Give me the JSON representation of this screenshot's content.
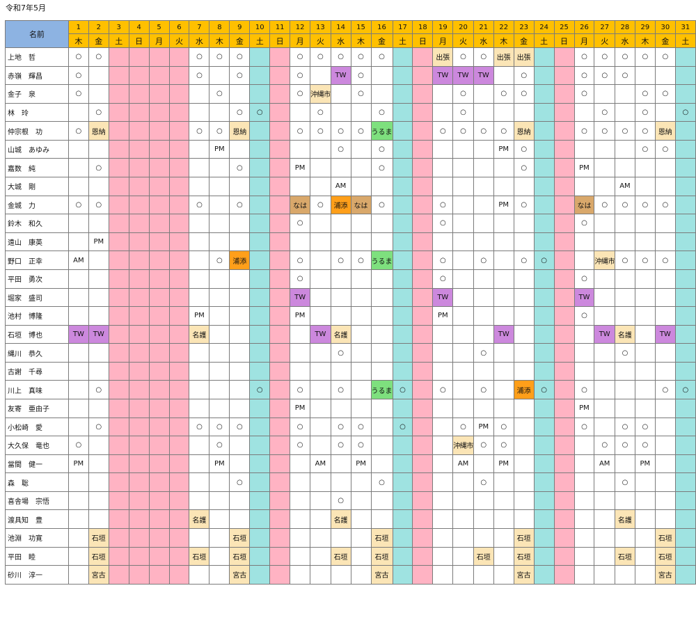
{
  "sheet": {
    "title": "令和7年5月",
    "name_header": "名前"
  },
  "days": [
    {
      "d": "1",
      "w": "木"
    },
    {
      "d": "2",
      "w": "金"
    },
    {
      "d": "3",
      "w": "土"
    },
    {
      "d": "4",
      "w": "日"
    },
    {
      "d": "5",
      "w": "月"
    },
    {
      "d": "6",
      "w": "火"
    },
    {
      "d": "7",
      "w": "水"
    },
    {
      "d": "8",
      "w": "木"
    },
    {
      "d": "9",
      "w": "金"
    },
    {
      "d": "10",
      "w": "土"
    },
    {
      "d": "11",
      "w": "日"
    },
    {
      "d": "12",
      "w": "月"
    },
    {
      "d": "13",
      "w": "火"
    },
    {
      "d": "14",
      "w": "水"
    },
    {
      "d": "15",
      "w": "木"
    },
    {
      "d": "16",
      "w": "金"
    },
    {
      "d": "17",
      "w": "土"
    },
    {
      "d": "18",
      "w": "日"
    },
    {
      "d": "19",
      "w": "月"
    },
    {
      "d": "20",
      "w": "火"
    },
    {
      "d": "21",
      "w": "水"
    },
    {
      "d": "22",
      "w": "木"
    },
    {
      "d": "23",
      "w": "金"
    },
    {
      "d": "24",
      "w": "土"
    },
    {
      "d": "25",
      "w": "日"
    },
    {
      "d": "26",
      "w": "月"
    },
    {
      "d": "27",
      "w": "火"
    },
    {
      "d": "28",
      "w": "水"
    },
    {
      "d": "29",
      "w": "木"
    },
    {
      "d": "30",
      "w": "金"
    },
    {
      "d": "31",
      "w": "土"
    }
  ],
  "day_kinds": [
    "",
    "",
    "hol",
    "hol",
    "hol",
    "hol",
    "",
    "",
    "",
    "sat",
    "hol",
    "",
    "",
    "",
    "",
    "",
    "sat",
    "hol",
    "",
    "",
    "",
    "",
    "",
    "sat",
    "hol",
    "",
    "",
    "",
    "",
    "",
    "sat"
  ],
  "colors": {
    "header_blue": "#8db3e2",
    "header_orange": "#ffc000",
    "saturday": "#9fe3e1",
    "sunday_holiday": "#ffb3c3",
    "tw": "#cc88dd",
    "urasoe": "#ff9f1a",
    "naha": "#d9a86b",
    "uruma": "#7ee07e",
    "beige": "#fbe5b6"
  },
  "staff": [
    {
      "name": "上地　哲",
      "marks": [
        "○",
        "○",
        "",
        "",
        "",
        "",
        "○",
        "○",
        "○",
        "",
        "",
        "○",
        "○",
        "○",
        "○",
        "○",
        "",
        "",
        "出張",
        "○",
        "○",
        "出張",
        "出張",
        "",
        "",
        "○",
        "○",
        "○",
        "○",
        "○",
        ""
      ]
    },
    {
      "name": "赤嶺　輝昌",
      "marks": [
        "○",
        "",
        "",
        "",
        "",
        "",
        "○",
        "",
        "○",
        "",
        "",
        "○",
        "",
        "TW",
        "○",
        "",
        "",
        "",
        "TW",
        "TW",
        "TW",
        "",
        "○",
        "",
        "",
        "○",
        "○",
        "○",
        "",
        "",
        ""
      ]
    },
    {
      "name": "金子　泉",
      "marks": [
        "○",
        "",
        "",
        "",
        "",
        "",
        "",
        "○",
        "",
        "",
        "",
        "○",
        "沖縄市",
        "",
        "○",
        "",
        "",
        "",
        "",
        "○",
        "",
        "○",
        "○",
        "",
        "",
        "○",
        "",
        "",
        "○",
        "○",
        ""
      ]
    },
    {
      "name": "林　玲",
      "marks": [
        "",
        "○",
        "",
        "",
        "",
        "",
        "",
        "",
        "○",
        "○",
        "",
        "",
        "○",
        "",
        "",
        "○",
        "",
        "",
        "",
        "○",
        "",
        "",
        "",
        "",
        "",
        "",
        "○",
        "",
        "○",
        "",
        "○"
      ]
    },
    {
      "name": "仲宗根　功",
      "marks": [
        "○",
        "恩納",
        "",
        "",
        "",
        "",
        "○",
        "○",
        "恩納",
        "",
        "",
        "○",
        "○",
        "○",
        "○",
        "うるま",
        "",
        "",
        "○",
        "○",
        "○",
        "○",
        "恩納",
        "",
        "",
        "○",
        "○",
        "○",
        "○",
        "恩納",
        ""
      ]
    },
    {
      "name": "山城　あゆみ",
      "marks": [
        "",
        "",
        "",
        "",
        "",
        "",
        "",
        "PM",
        "",
        "",
        "",
        "",
        "",
        "○",
        "",
        "○",
        "",
        "",
        "",
        "",
        "",
        "PM",
        "○",
        "",
        "",
        "",
        "",
        "",
        "○",
        "○",
        ""
      ]
    },
    {
      "name": "嘉数　純",
      "marks": [
        "",
        "○",
        "",
        "",
        "",
        "",
        "",
        "",
        "○",
        "",
        "",
        "PM",
        "",
        "",
        "",
        "○",
        "",
        "",
        "",
        "",
        "",
        "",
        "○",
        "",
        "",
        "PM",
        "",
        "",
        "",
        "",
        ""
      ]
    },
    {
      "name": "大城　剛",
      "marks": [
        "",
        "",
        "",
        "",
        "",
        "",
        "",
        "",
        "",
        "",
        "",
        "",
        "",
        "AM",
        "",
        "",
        "",
        "",
        "",
        "",
        "",
        "",
        "",
        "",
        "",
        "",
        "",
        "AM",
        "",
        "",
        ""
      ]
    },
    {
      "name": "金城　力",
      "marks": [
        "○",
        "○",
        "",
        "",
        "",
        "",
        "○",
        "",
        "○",
        "",
        "",
        "なは",
        "○",
        "浦添",
        "なは",
        "○",
        "",
        "",
        "○",
        "",
        "",
        "PM",
        "○",
        "",
        "",
        "なは",
        "○",
        "○",
        "○",
        "○",
        ""
      ]
    },
    {
      "name": "鈴木　和久",
      "marks": [
        "",
        "",
        "",
        "",
        "",
        "",
        "",
        "",
        "",
        "",
        "",
        "○",
        "",
        "",
        "",
        "",
        "",
        "",
        "○",
        "",
        "",
        "",
        "",
        "",
        "",
        "○",
        "",
        "",
        "",
        "",
        ""
      ]
    },
    {
      "name": "遠山　康英",
      "marks": [
        "",
        "PM",
        "",
        "",
        "",
        "",
        "",
        "",
        "",
        "",
        "",
        "",
        "",
        "",
        "",
        "",
        "",
        "",
        "",
        "",
        "",
        "",
        "",
        "",
        "",
        "",
        "",
        "",
        "",
        "",
        ""
      ]
    },
    {
      "name": "野口　正幸",
      "marks": [
        "AM",
        "",
        "",
        "",
        "",
        "",
        "",
        "○",
        "浦添",
        "",
        "",
        "○",
        "",
        "○",
        "○",
        "うるま",
        "",
        "",
        "○",
        "",
        "○",
        "",
        "○",
        "○",
        "",
        "",
        "沖縄市",
        "○",
        "○",
        "○",
        ""
      ]
    },
    {
      "name": "平田　勇次",
      "marks": [
        "",
        "",
        "",
        "",
        "",
        "",
        "",
        "",
        "",
        "",
        "",
        "○",
        "",
        "",
        "",
        "",
        "",
        "",
        "○",
        "",
        "",
        "",
        "",
        "",
        "",
        "○",
        "",
        "",
        "",
        "",
        ""
      ]
    },
    {
      "name": "堀家　盛司",
      "marks": [
        "",
        "",
        "",
        "",
        "",
        "",
        "",
        "",
        "",
        "",
        "",
        "TW",
        "",
        "",
        "",
        "",
        "",
        "",
        "TW",
        "",
        "",
        "",
        "",
        "",
        "",
        "TW",
        "",
        "",
        "",
        "",
        ""
      ]
    },
    {
      "name": "池村　博隆",
      "marks": [
        "",
        "",
        "",
        "",
        "",
        "",
        "PM",
        "",
        "",
        "",
        "",
        "PM",
        "",
        "",
        "",
        "",
        "",
        "",
        "PM",
        "",
        "",
        "",
        "",
        "",
        "",
        "○",
        "",
        "",
        "",
        "",
        ""
      ]
    },
    {
      "name": "石垣　博也",
      "marks": [
        "TW",
        "TW",
        "",
        "",
        "",
        "",
        "名護",
        "",
        "",
        "",
        "",
        "",
        "TW",
        "名護",
        "",
        "",
        "",
        "",
        "",
        "",
        "",
        "TW",
        "",
        "",
        "",
        "",
        "TW",
        "名護",
        "",
        "TW",
        ""
      ]
    },
    {
      "name": "縄川　恭久",
      "marks": [
        "",
        "",
        "",
        "",
        "",
        "",
        "",
        "",
        "",
        "",
        "",
        "",
        "",
        "○",
        "",
        "",
        "",
        "",
        "",
        "",
        "○",
        "",
        "",
        "",
        "",
        "",
        "",
        "○",
        "",
        "",
        ""
      ]
    },
    {
      "name": "古謝　千尋",
      "marks": [
        "",
        "",
        "",
        "",
        "",
        "",
        "",
        "",
        "",
        "",
        "",
        "",
        "",
        "",
        "",
        "",
        "",
        "",
        "",
        "",
        "",
        "",
        "",
        "",
        "",
        "",
        "",
        "",
        "",
        "",
        ""
      ]
    },
    {
      "name": "川上　真味",
      "marks": [
        "",
        "○",
        "",
        "",
        "",
        "",
        "",
        "",
        "",
        "○",
        "",
        "○",
        "",
        "○",
        "",
        "うるま",
        "○",
        "",
        "○",
        "",
        "○",
        "",
        "浦添",
        "○",
        "",
        "○",
        "",
        "",
        "",
        "○",
        "○"
      ]
    },
    {
      "name": "友寄　亜由子",
      "marks": [
        "",
        "",
        "",
        "",
        "",
        "",
        "",
        "",
        "",
        "",
        "",
        "PM",
        "",
        "",
        "",
        "",
        "",
        "",
        "",
        "",
        "",
        "",
        "",
        "",
        "",
        "PM",
        "",
        "",
        "",
        "",
        ""
      ]
    },
    {
      "name": "小松崎　愛",
      "marks": [
        "",
        "○",
        "",
        "",
        "",
        "",
        "○",
        "○",
        "○",
        "",
        "",
        "○",
        "",
        "○",
        "○",
        "",
        "○",
        "",
        "",
        "○",
        "PM",
        "○",
        "",
        "",
        "",
        "○",
        "",
        "○",
        "○",
        "",
        ""
      ]
    },
    {
      "name": "大久保　竜也",
      "marks": [
        "○",
        "",
        "",
        "",
        "",
        "",
        "",
        "○",
        "",
        "",
        "",
        "○",
        "",
        "○",
        "○",
        "",
        "",
        "",
        "",
        "沖縄市",
        "○",
        "○",
        "",
        "",
        "",
        "",
        "○",
        "○",
        "○",
        "",
        ""
      ]
    },
    {
      "name": "當間　健一",
      "marks": [
        "PM",
        "",
        "",
        "",
        "",
        "",
        "",
        "PM",
        "",
        "",
        "",
        "",
        "AM",
        "",
        "PM",
        "",
        "",
        "",
        "",
        "AM",
        "",
        "PM",
        "",
        "",
        "",
        "",
        "AM",
        "",
        "PM",
        "",
        ""
      ]
    },
    {
      "name": "森　聡",
      "marks": [
        "",
        "",
        "",
        "",
        "",
        "",
        "",
        "",
        "○",
        "",
        "",
        "",
        "",
        "",
        "",
        "○",
        "",
        "",
        "",
        "",
        "○",
        "",
        "",
        "",
        "",
        "",
        "",
        "○",
        "",
        "",
        ""
      ]
    },
    {
      "name": "喜舎場　宗悟",
      "marks": [
        "",
        "",
        "",
        "",
        "",
        "",
        "",
        "",
        "",
        "",
        "",
        "",
        "",
        "○",
        "",
        "",
        "",
        "",
        "",
        "",
        "",
        "",
        "",
        "",
        "",
        "",
        "",
        "",
        "",
        "",
        ""
      ]
    },
    {
      "name": "渡具知　豊",
      "marks": [
        "",
        "",
        "",
        "",
        "",
        "",
        "名護",
        "",
        "",
        "",
        "",
        "",
        "",
        "名護",
        "",
        "",
        "",
        "",
        "",
        "",
        "",
        "",
        "",
        "",
        "",
        "",
        "",
        "名護",
        "",
        "",
        ""
      ]
    },
    {
      "name": "池淵　功寛",
      "marks": [
        "",
        "石垣",
        "",
        "",
        "",
        "",
        "",
        "",
        "石垣",
        "",
        "",
        "",
        "",
        "",
        "",
        "石垣",
        "",
        "",
        "",
        "",
        "",
        "",
        "石垣",
        "",
        "",
        "",
        "",
        "",
        "",
        "石垣",
        ""
      ]
    },
    {
      "name": "平田　睦",
      "marks": [
        "",
        "石垣",
        "",
        "",
        "",
        "",
        "石垣",
        "",
        "石垣",
        "",
        "",
        "",
        "",
        "石垣",
        "",
        "石垣",
        "",
        "",
        "",
        "",
        "石垣",
        "",
        "石垣",
        "",
        "",
        "",
        "",
        "石垣",
        "",
        "石垣",
        ""
      ]
    },
    {
      "name": "砂川　淳一",
      "marks": [
        "",
        "宮古",
        "",
        "",
        "",
        "",
        "",
        "",
        "宮古",
        "",
        "",
        "",
        "",
        "",
        "",
        "宮古",
        "",
        "",
        "",
        "",
        "",
        "",
        "宮古",
        "",
        "",
        "",
        "",
        "",
        "",
        "宮古",
        ""
      ]
    }
  ]
}
